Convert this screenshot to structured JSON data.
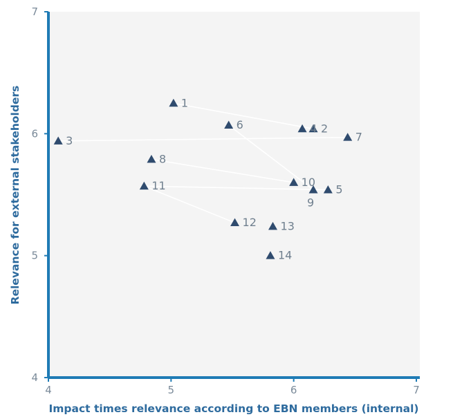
{
  "colors": {
    "axis": "#1f7bb5",
    "plot_bg": "#f4f4f4",
    "marker": "#2f4b6e",
    "connector": "#ffffff"
  },
  "chart_data": {
    "type": "scatter",
    "xlabel": "Impact times relevance according to EBN members (internal)",
    "ylabel": "Relevance for external stakeholders",
    "xlim": [
      4,
      7
    ],
    "ylim": [
      4,
      7
    ],
    "x_ticks": [
      "4",
      "5",
      "6",
      "7"
    ],
    "y_ticks": [
      "4",
      "5",
      "6",
      "7"
    ],
    "grid": false,
    "marker": "triangle",
    "points": [
      {
        "label": "1",
        "x": 5.02,
        "y": 6.25
      },
      {
        "label": "2",
        "x": 6.16,
        "y": 6.04
      },
      {
        "label": "3",
        "x": 4.08,
        "y": 5.94
      },
      {
        "label": "4",
        "x": 6.07,
        "y": 6.04
      },
      {
        "label": "5",
        "x": 6.28,
        "y": 5.54
      },
      {
        "label": "6",
        "x": 5.47,
        "y": 6.07
      },
      {
        "label": "7",
        "x": 6.44,
        "y": 5.97
      },
      {
        "label": "8",
        "x": 4.84,
        "y": 5.79
      },
      {
        "label": "9",
        "x": 6.16,
        "y": 5.54
      },
      {
        "label": "10",
        "x": 6.0,
        "y": 5.6
      },
      {
        "label": "11",
        "x": 4.78,
        "y": 5.57
      },
      {
        "label": "12",
        "x": 5.52,
        "y": 5.27
      },
      {
        "label": "13",
        "x": 5.83,
        "y": 5.24
      },
      {
        "label": "14",
        "x": 5.81,
        "y": 5.0
      }
    ],
    "connectors": [
      [
        1,
        2
      ],
      [
        6,
        9
      ],
      [
        3,
        7
      ],
      [
        8,
        10
      ],
      [
        11,
        5
      ],
      [
        11,
        12
      ]
    ]
  }
}
